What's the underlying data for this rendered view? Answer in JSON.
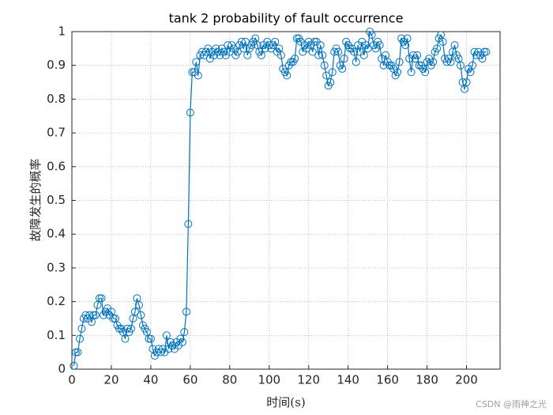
{
  "chart_data": {
    "type": "line",
    "title": "tank 2 probability of fault occurrence",
    "xlabel": "时间(s)",
    "ylabel": "故障发生的概率",
    "watermark": "CSDN @雨神之光",
    "x": [
      1,
      2,
      3,
      4,
      5,
      6,
      7,
      8,
      9,
      10,
      11,
      12,
      13,
      14,
      15,
      16,
      17,
      18,
      19,
      20,
      21,
      22,
      23,
      24,
      25,
      26,
      27,
      28,
      29,
      30,
      31,
      32,
      33,
      34,
      35,
      36,
      37,
      38,
      39,
      40,
      41,
      42,
      43,
      44,
      45,
      46,
      47,
      48,
      49,
      50,
      51,
      52,
      53,
      54,
      55,
      56,
      57,
      58,
      59,
      60,
      61,
      62,
      63,
      64,
      65,
      66,
      67,
      68,
      69,
      70,
      71,
      72,
      73,
      74,
      75,
      76,
      77,
      78,
      79,
      80,
      81,
      82,
      83,
      84,
      85,
      86,
      87,
      88,
      89,
      90,
      91,
      92,
      93,
      94,
      95,
      96,
      97,
      98,
      99,
      100,
      101,
      102,
      103,
      104,
      105,
      106,
      107,
      108,
      109,
      110,
      111,
      112,
      113,
      114,
      115,
      116,
      117,
      118,
      119,
      120,
      121,
      122,
      123,
      124,
      125,
      126,
      127,
      128,
      129,
      130,
      131,
      132,
      133,
      134,
      135,
      136,
      137,
      138,
      139,
      140,
      141,
      142,
      143,
      144,
      145,
      146,
      147,
      148,
      149,
      150,
      151,
      152,
      153,
      154,
      155,
      156,
      157,
      158,
      159,
      160,
      161,
      162,
      163,
      164,
      165,
      166,
      167,
      168,
      169,
      170,
      171,
      172,
      173,
      174,
      175,
      176,
      177,
      178,
      179,
      180,
      181,
      182,
      183,
      184,
      185,
      186,
      187,
      188,
      189,
      190,
      191,
      192,
      193,
      194,
      195,
      196,
      197,
      198,
      199,
      200,
      201,
      202,
      203,
      204,
      205,
      206,
      207,
      208,
      209,
      210
    ],
    "series": [
      {
        "color": "#0072BD",
        "values": [
          0.01,
          0.05,
          0.05,
          0.09,
          0.12,
          0.15,
          0.16,
          0.15,
          0.16,
          0.14,
          0.16,
          0.16,
          0.19,
          0.21,
          0.21,
          0.16,
          0.17,
          0.18,
          0.16,
          0.17,
          0.15,
          0.15,
          0.13,
          0.12,
          0.12,
          0.11,
          0.09,
          0.12,
          0.11,
          0.12,
          0.15,
          0.17,
          0.21,
          0.19,
          0.16,
          0.13,
          0.12,
          0.11,
          0.09,
          0.09,
          0.06,
          0.04,
          0.05,
          0.06,
          0.05,
          0.06,
          0.05,
          0.1,
          0.06,
          0.08,
          0.07,
          0.06,
          0.08,
          0.07,
          0.09,
          0.08,
          0.11,
          0.17,
          0.43,
          0.76,
          0.88,
          0.88,
          0.91,
          0.87,
          0.93,
          0.94,
          0.93,
          0.94,
          0.95,
          0.92,
          0.94,
          0.93,
          0.95,
          0.94,
          0.93,
          0.95,
          0.94,
          0.93,
          0.96,
          0.94,
          0.96,
          0.95,
          0.93,
          0.94,
          0.96,
          0.97,
          0.95,
          0.97,
          0.93,
          0.95,
          0.96,
          0.97,
          0.98,
          0.96,
          0.94,
          0.93,
          0.96,
          0.95,
          0.97,
          0.96,
          0.95,
          0.96,
          0.97,
          0.94,
          0.95,
          0.93,
          0.89,
          0.88,
          0.87,
          0.9,
          0.91,
          0.91,
          0.92,
          0.98,
          0.98,
          0.97,
          0.94,
          0.96,
          0.95,
          0.97,
          0.96,
          0.94,
          0.97,
          0.97,
          0.93,
          0.96,
          0.93,
          0.9,
          0.87,
          0.84,
          0.85,
          0.88,
          0.94,
          0.95,
          0.94,
          0.9,
          0.89,
          0.92,
          0.97,
          0.96,
          0.95,
          0.95,
          0.94,
          0.91,
          0.96,
          0.94,
          0.97,
          0.93,
          0.96,
          0.95,
          1.0,
          0.99,
          0.96,
          0.95,
          0.97,
          0.96,
          0.92,
          0.9,
          0.93,
          0.91,
          0.9,
          0.9,
          0.89,
          0.87,
          0.88,
          0.91,
          0.98,
          0.97,
          0.96,
          0.98,
          0.92,
          0.88,
          0.93,
          0.92,
          0.93,
          0.9,
          0.9,
          0.89,
          0.88,
          0.91,
          0.92,
          0.9,
          0.91,
          0.94,
          0.95,
          0.98,
          0.99,
          0.97,
          0.92,
          0.91,
          0.92,
          0.91,
          0.94,
          0.96,
          0.93,
          0.92,
          0.9,
          0.85,
          0.83,
          0.85,
          0.89,
          0.88,
          0.9,
          0.94,
          0.93,
          0.94,
          0.93,
          0.92,
          0.94,
          0.94
        ]
      }
    ],
    "xlim": [
      0,
      217
    ],
    "ylim": [
      0,
      1
    ],
    "xticks": [
      0,
      20,
      40,
      60,
      80,
      100,
      120,
      140,
      160,
      180,
      200
    ],
    "yticks": [
      0,
      0.1,
      0.2,
      0.3,
      0.4,
      0.5,
      0.6,
      0.7,
      0.8,
      0.9,
      1
    ],
    "grid": true,
    "marker": "circle"
  }
}
